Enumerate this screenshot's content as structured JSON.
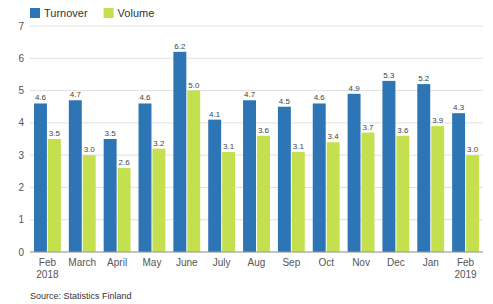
{
  "chart_data": {
    "type": "bar",
    "categories": [
      "Feb\n2018",
      "March",
      "April",
      "May",
      "June",
      "July",
      "Aug",
      "Sep",
      "Oct",
      "Nov",
      "Dec",
      "Jan",
      "Feb\n2019"
    ],
    "series": [
      {
        "name": "Turnover",
        "color": "#2e75b6",
        "values": [
          4.6,
          4.7,
          3.5,
          4.6,
          6.2,
          4.1,
          4.7,
          4.5,
          4.6,
          4.9,
          5.3,
          5.2,
          4.3
        ]
      },
      {
        "name": "Volume",
        "color": "#c5e04e",
        "values": [
          3.5,
          3.0,
          2.6,
          3.2,
          5.0,
          3.1,
          3.6,
          3.1,
          3.4,
          3.7,
          3.6,
          3.9,
          3.0
        ],
        "value_labels": [
          "3.5",
          "3.0",
          "2.6",
          "3.2",
          "5.0",
          "3.1",
          "3.6",
          "3.1",
          "3.4",
          "3.7",
          "3.6",
          "3.9",
          "3.0"
        ]
      }
    ],
    "ylim": [
      0,
      7
    ],
    "yticks": [
      0,
      1,
      2,
      3,
      4,
      5,
      6,
      7
    ],
    "grid": true,
    "legend": "upper left",
    "data_labels": true,
    "annotations": [
      "Source: Statistics Finland"
    ]
  }
}
